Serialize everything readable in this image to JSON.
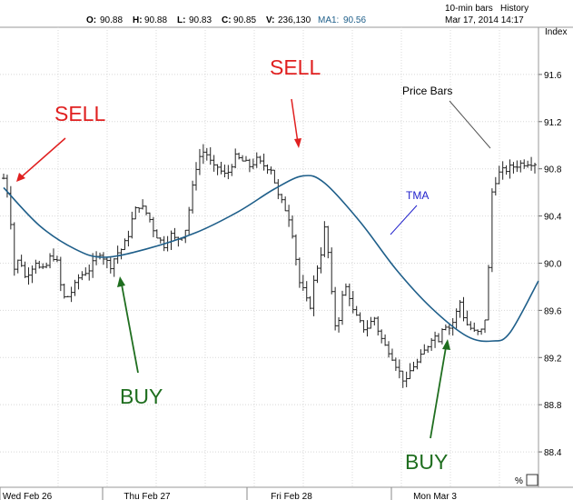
{
  "chart_data": {
    "type": "ohlc-bar",
    "header": {
      "interval_label": "10-min bars",
      "history_label": "History",
      "datetime": "Mar 17, 2014 14:17",
      "index_label": "Index",
      "ohlcv": [
        {
          "key": "O:",
          "value": "90.88"
        },
        {
          "key": "H:",
          "value": "90.88"
        },
        {
          "key": "L:",
          "value": "90.83"
        },
        {
          "key": "C:",
          "value": "90.85"
        },
        {
          "key": "V:",
          "value": "236,130"
        }
      ],
      "ma_label": "MA1:",
      "ma_value": "90.56"
    },
    "ylim": [
      88.1,
      92.0
    ],
    "yticks": [
      88.4,
      88.8,
      89.2,
      89.6,
      90.0,
      90.4,
      90.8,
      91.2,
      91.6
    ],
    "ytick_labels": [
      "88.4",
      "88.8",
      "89.2",
      "89.6",
      "90.0",
      "90.4",
      "90.8",
      "91.2",
      "91.6"
    ],
    "x_labels": [
      "Wed Feb 26",
      "Thu Feb 27",
      "Fri Feb 28",
      "Mon Mar 3"
    ],
    "percent_label": "%",
    "bar_count": 150,
    "price_series": [
      90.72,
      90.55,
      89.95,
      90.05,
      89.88,
      89.95,
      90.02,
      89.92,
      89.98,
      90.08,
      90.0,
      89.7,
      89.72,
      89.78,
      89.88,
      89.92,
      89.95,
      90.02,
      90.1,
      90.02,
      89.98,
      90.08,
      90.12,
      90.2,
      90.38,
      90.5,
      90.46,
      90.4,
      90.28,
      90.2,
      90.15,
      90.25,
      90.2,
      90.22,
      90.3,
      90.58,
      90.85,
      90.95,
      90.92,
      90.8,
      90.82,
      90.74,
      90.78,
      90.9,
      90.88,
      90.85,
      90.82,
      90.88,
      90.84,
      90.82,
      90.8,
      90.58,
      90.5,
      90.42,
      90.22,
      89.85,
      89.75,
      89.6,
      89.9,
      90.05,
      90.35,
      89.78,
      89.4,
      89.7,
      89.82,
      89.6,
      89.52,
      89.45,
      89.46,
      89.55,
      89.4,
      89.3,
      89.25,
      89.15,
      89.05,
      88.98,
      89.12,
      89.15,
      89.22,
      89.3,
      89.4,
      89.35,
      89.5,
      89.45,
      89.52,
      89.68,
      89.5,
      89.45,
      89.4,
      89.42,
      89.58,
      90.6,
      90.75,
      90.78,
      90.8,
      90.82,
      90.84,
      90.85,
      90.86,
      90.85
    ],
    "tma": [
      {
        "bar": 0,
        "value": 90.64
      },
      {
        "bar": 10,
        "value": 90.32
      },
      {
        "bar": 20,
        "value": 90.12
      },
      {
        "bar": 28,
        "value": 90.05
      },
      {
        "bar": 40,
        "value": 90.12
      },
      {
        "bar": 54,
        "value": 90.26
      },
      {
        "bar": 66,
        "value": 90.44
      },
      {
        "bar": 76,
        "value": 90.63
      },
      {
        "bar": 84,
        "value": 90.74
      },
      {
        "bar": 90,
        "value": 90.68
      },
      {
        "bar": 100,
        "value": 90.35
      },
      {
        "bar": 110,
        "value": 89.95
      },
      {
        "bar": 120,
        "value": 89.62
      },
      {
        "bar": 130,
        "value": 89.38
      },
      {
        "bar": 137,
        "value": 89.34
      },
      {
        "bar": 142,
        "value": 89.41
      },
      {
        "bar": 150,
        "value": 89.85
      }
    ],
    "annotations": {
      "sell1": "SELL",
      "sell2": "SELL",
      "buy1": "BUY",
      "buy2": "BUY",
      "tma_label": "TMA",
      "price_bars_label": "Price Bars"
    },
    "colors": {
      "background": "#ffffff",
      "bars": "#222222",
      "tma_line": "#1f5f8a",
      "sell": "#e02020",
      "buy": "#1f6e1f",
      "tma_label": "#2222cc",
      "price_bars_label": "#000000",
      "grid": "#d8d8d8"
    }
  }
}
